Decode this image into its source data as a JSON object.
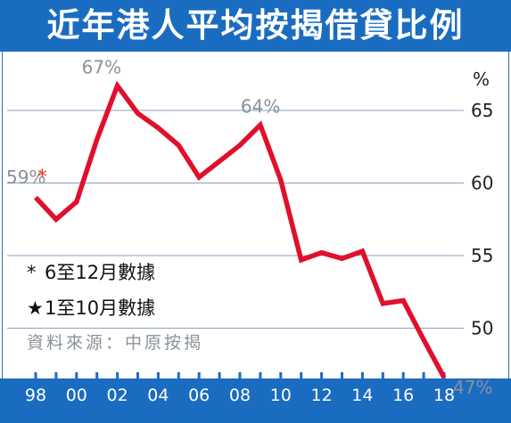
{
  "chart_data": {
    "type": "line",
    "title": "近年港人平均按揭借貸比例",
    "ylabel": "%",
    "ylim": [
      46,
      68
    ],
    "yticks": [
      50,
      55,
      60,
      65
    ],
    "x_tick_labels": [
      "98",
      "00",
      "02",
      "04",
      "06",
      "08",
      "10",
      "12",
      "14",
      "16",
      "18"
    ],
    "grid": true,
    "series": [
      {
        "color": "#e0102c",
        "x": [
          1998,
          1999,
          2000,
          2001,
          2002,
          2003,
          2004,
          2005,
          2006,
          2007,
          2008,
          2009,
          2010,
          2011,
          2012,
          2013,
          2014,
          2015,
          2016,
          2017,
          2018
        ],
        "y": [
          59,
          57.5,
          58.7,
          63,
          66.7,
          64.8,
          63.8,
          62.6,
          60.4,
          61.5,
          62.6,
          64,
          60.2,
          54.7,
          55.2,
          54.8,
          55.3,
          51.7,
          51.9,
          49.2,
          46.6
        ]
      }
    ],
    "annotations": [
      {
        "text": "59%",
        "mark": "*",
        "mark_color": "#e8431f",
        "x": 1998,
        "y": 59
      },
      {
        "text": "67%",
        "x": 2002,
        "y": 66.7
      },
      {
        "text": "64%",
        "x": 2009,
        "y": 64
      },
      {
        "text": "47%",
        "mark": "★",
        "mark_color": "#e8431f",
        "x": 2018,
        "y": 46.6
      }
    ]
  },
  "notes": [
    {
      "symbol": "*",
      "text": "6至12月數據"
    },
    {
      "symbol": "★",
      "text": "1至10月數據"
    }
  ],
  "source": "資料來源：中原按揭"
}
